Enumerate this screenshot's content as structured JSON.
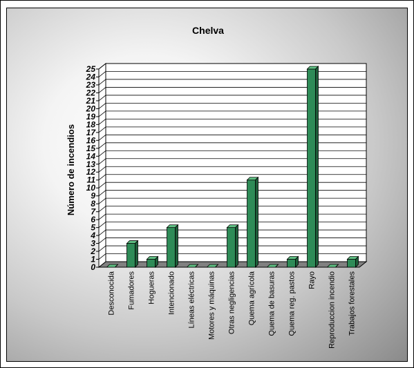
{
  "chart_data": {
    "type": "bar",
    "title": "Chelva",
    "ylabel": "Número de incendios",
    "xlabel": "",
    "ylim": [
      0,
      25
    ],
    "y_ticks": [
      0,
      1,
      2,
      3,
      4,
      5,
      6,
      7,
      8,
      9,
      10,
      11,
      12,
      13,
      14,
      15,
      16,
      17,
      18,
      19,
      20,
      21,
      22,
      23,
      24,
      25
    ],
    "grid": true,
    "style": "3d",
    "bar_color": "#2e8b57",
    "categories": [
      "Desconocida",
      "Fumadores",
      "Hogueras",
      "Intencionado",
      "Líneas eléctricas",
      "Motores y máquinas",
      "Otras negligencias",
      "Quema agrícola",
      "Quema de basuras",
      "Quema reg. pastos",
      "Rayo",
      "Reproduccion incendio",
      "Trabajos forestales"
    ],
    "values": [
      0,
      3,
      1,
      5,
      0,
      0,
      5,
      11,
      0,
      1,
      25,
      0,
      1
    ]
  }
}
